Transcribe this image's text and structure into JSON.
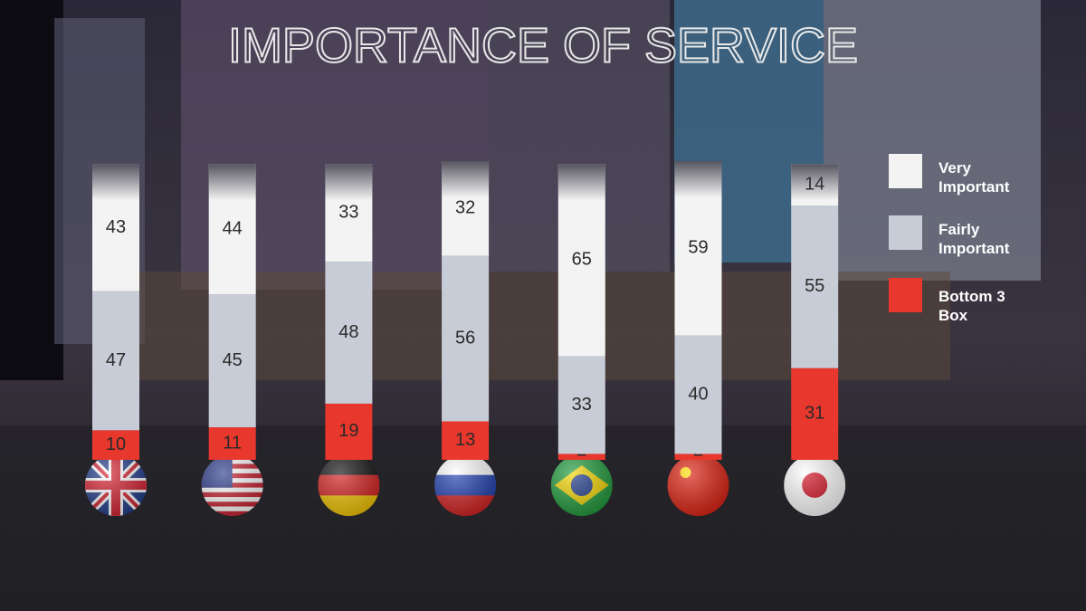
{
  "chart_data": {
    "type": "bar",
    "stacked": true,
    "title": "IMPORTANCE OF SERVICE",
    "categories": [
      null,
      null,
      null,
      null,
      null,
      null,
      null
    ],
    "series": [
      {
        "name": "Bottom 3 Box",
        "color": "#e8372c",
        "values": [
          10,
          11,
          19,
          13,
          2,
          2,
          31
        ]
      },
      {
        "name": "Fairly Important",
        "color": "#c8ccd6",
        "values": [
          47,
          45,
          48,
          56,
          33,
          40,
          55
        ]
      },
      {
        "name": "Very Important",
        "color": "#f3f3f3",
        "values": [
          43,
          44,
          33,
          32,
          65,
          59,
          14
        ]
      }
    ],
    "legend": "right"
  }
}
